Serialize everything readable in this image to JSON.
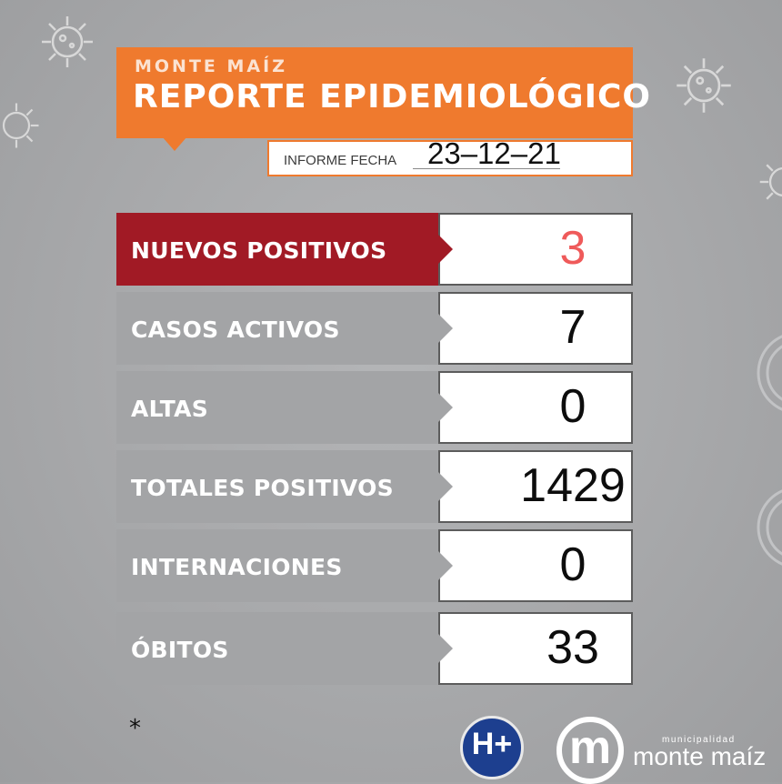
{
  "header": {
    "subtitle": "MONTE MAÍZ",
    "title": "REPORTE EPIDEMIOLÓGICO",
    "accent_color": "#ef7a2e"
  },
  "report_date": {
    "label": "INFORME FECHA",
    "value": "23–12–21"
  },
  "stats": [
    {
      "label": "NUEVOS POSITIVOS",
      "value": "3",
      "highlight": true,
      "color": "#a11a25"
    },
    {
      "label": "CASOS ACTIVOS",
      "value": "7"
    },
    {
      "label": "ALTAS",
      "value": "0"
    },
    {
      "label": "TOTALES POSITIVOS",
      "value": "1429"
    },
    {
      "label": "INTERNACIONES",
      "value": "0"
    },
    {
      "label": "ÓBITOS",
      "value": "33"
    }
  ],
  "footnote": "*",
  "logos": {
    "hospital": "H+",
    "municipality_mark": "m",
    "municipality_small": "municipalidad",
    "municipality_name": "monte maíz"
  },
  "background_icons": [
    "virus-icon",
    "virus-icon",
    "virus-icon",
    "virus-icon"
  ]
}
